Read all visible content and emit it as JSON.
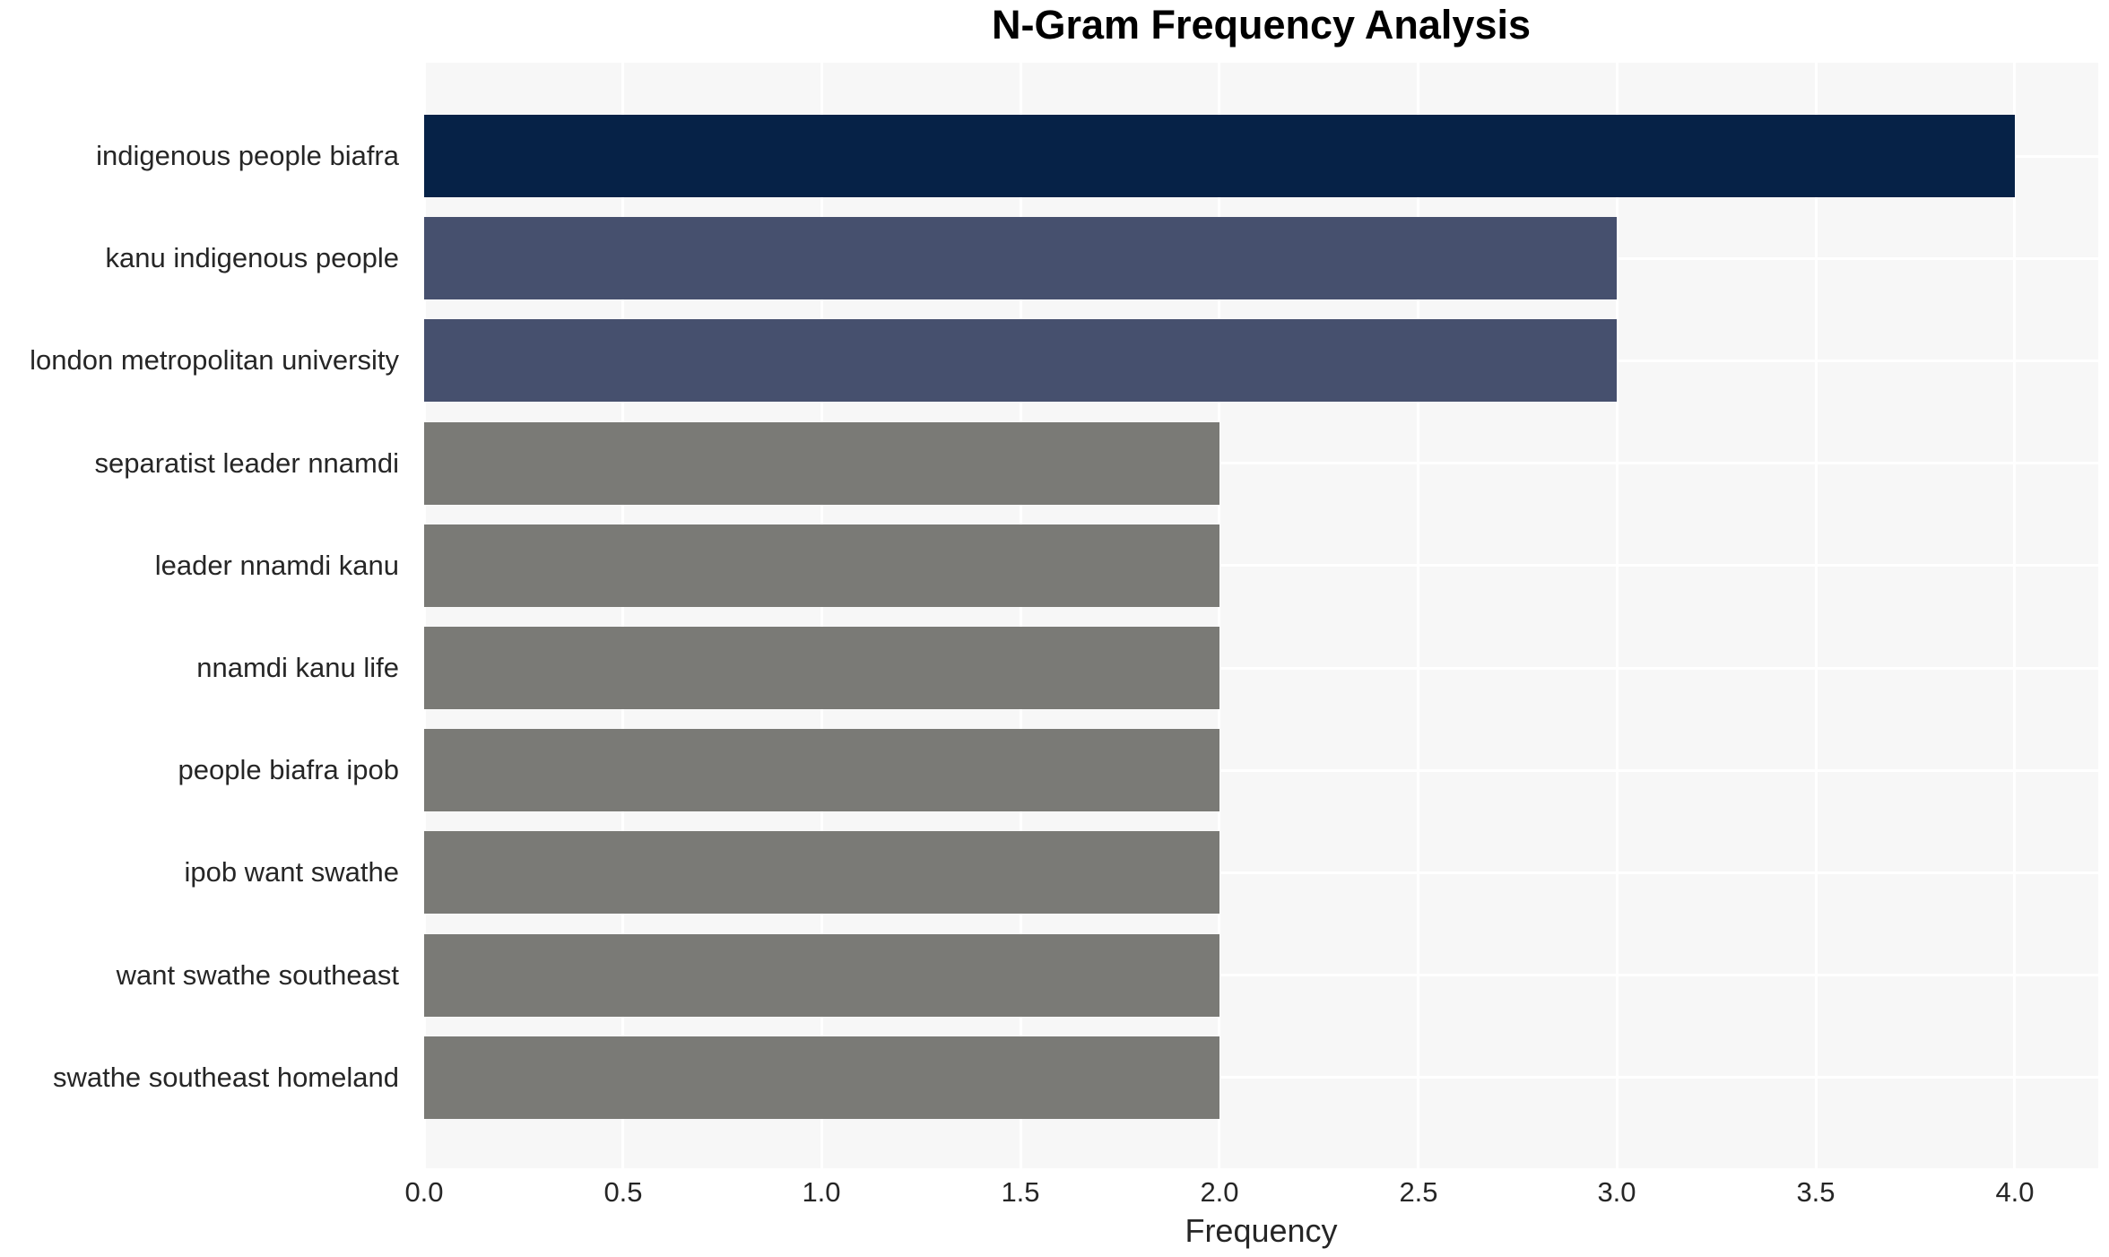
{
  "chart_data": {
    "type": "bar",
    "orientation": "horizontal",
    "title": "N-Gram Frequency Analysis",
    "xlabel": "Frequency",
    "ylabel": "",
    "categories": [
      "indigenous people biafra",
      "kanu indigenous people",
      "london metropolitan university",
      "separatist leader nnamdi",
      "leader nnamdi kanu",
      "nnamdi kanu life",
      "people biafra ipob",
      "ipob want swathe",
      "want swathe southeast",
      "swathe southeast homeland"
    ],
    "values": [
      4,
      3,
      3,
      2,
      2,
      2,
      2,
      2,
      2,
      2
    ],
    "bar_colors": [
      "#062247",
      "#46506e",
      "#46506e",
      "#7a7a76",
      "#7a7a76",
      "#7a7a76",
      "#7a7a76",
      "#7a7a76",
      "#7a7a76",
      "#7a7a76"
    ],
    "xtick_labels": [
      "0.0",
      "0.5",
      "1.0",
      "1.5",
      "2.0",
      "2.5",
      "3.0",
      "3.5",
      "4.0"
    ],
    "xtick_values": [
      0,
      0.5,
      1,
      1.5,
      2,
      2.5,
      3,
      3.5,
      4
    ],
    "xlim": [
      0,
      4.21
    ],
    "grid": true,
    "legend": false,
    "plot_background": "#f7f7f7",
    "grid_color": "#ffffff",
    "tick_text_color": "#262626",
    "title_color": "#000000"
  }
}
